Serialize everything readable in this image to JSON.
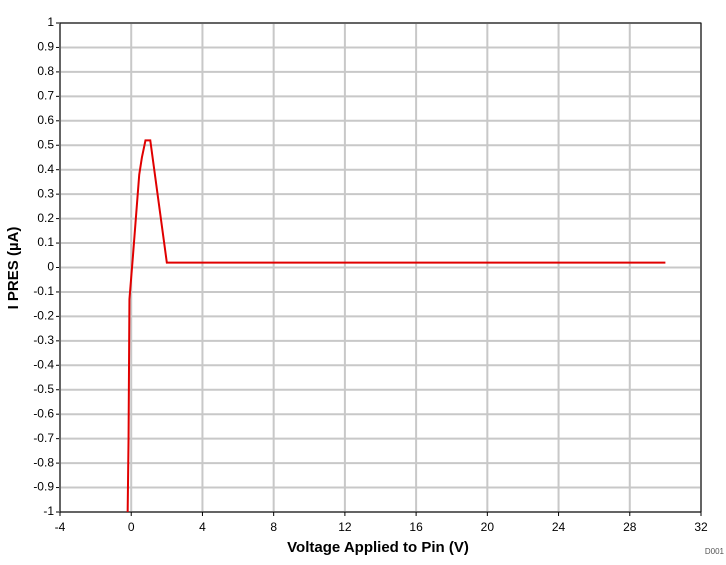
{
  "chart_data": {
    "type": "line",
    "xlabel": "Voltage Applied to Pin (V)",
    "ylabel": "I PRES (µA)",
    "note": "D001",
    "x": [
      -0.2,
      -0.15,
      -0.1,
      0.1,
      0.45,
      0.6,
      0.8,
      1.07,
      2.0,
      30
    ],
    "series": [
      {
        "color": "#e00000",
        "values": [
          -1,
          -0.7,
          -0.13,
          0.05,
          0.38,
          0.45,
          0.52,
          0.52,
          0.02,
          0.02
        ]
      }
    ],
    "xlim": [
      -4,
      32
    ],
    "xticks": [
      -4,
      0,
      4,
      8,
      12,
      16,
      20,
      24,
      28,
      32
    ],
    "ylim": [
      -1,
      1
    ],
    "yticks": [
      -1,
      -0.9,
      -0.8,
      -0.7,
      -0.6,
      -0.5,
      -0.4,
      -0.3,
      -0.2,
      -0.1,
      0,
      0.1,
      0.2,
      0.3,
      0.4,
      0.5,
      0.6,
      0.7,
      0.8,
      0.9,
      1
    ],
    "grid": true
  }
}
